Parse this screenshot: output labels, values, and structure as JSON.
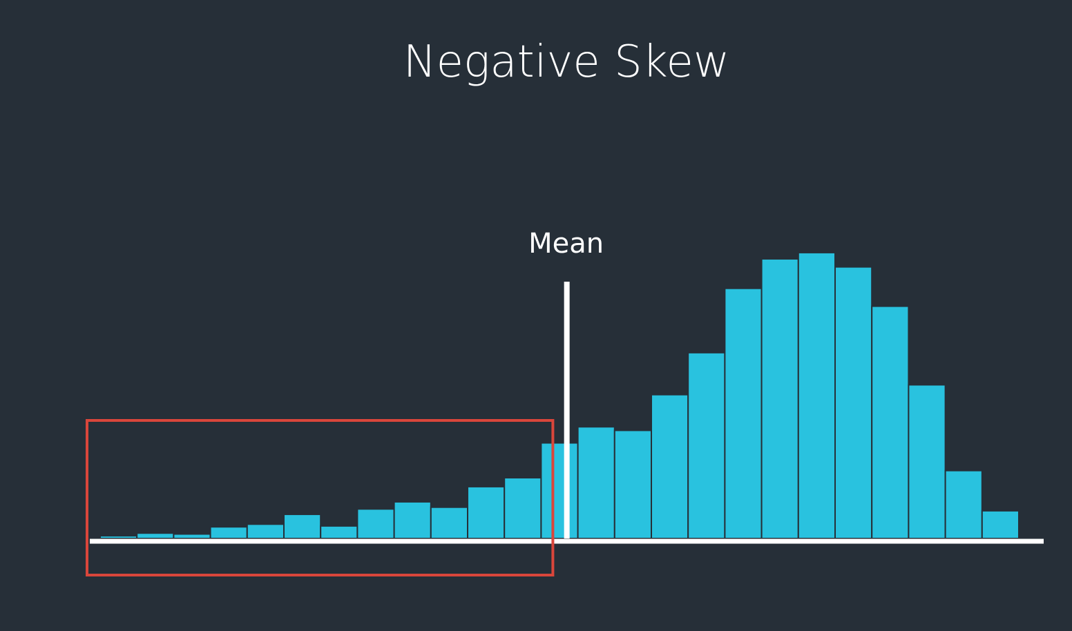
{
  "chart_data": {
    "type": "histogram",
    "title": "Negative Skew",
    "bin_count": 25,
    "values": [
      3,
      6,
      5,
      13,
      16,
      27,
      14,
      33,
      41,
      35,
      58,
      68,
      107,
      125,
      121,
      161,
      208,
      280,
      313,
      320,
      304,
      260,
      172,
      76,
      31
    ],
    "ylim": [
      0,
      330
    ],
    "bar_color": "#29c2df",
    "bar_edge_color": "#262f38",
    "axis_color": "#ffffff",
    "mean": {
      "label": "Mean",
      "bin_position": 12.7,
      "line_color": "#ffffff"
    },
    "highlight": {
      "covers_bins": [
        0,
        11
      ],
      "color": "#d9463b",
      "meaning": "left tail"
    }
  },
  "colors": {
    "background": "#262f38",
    "text": "#ffffff"
  }
}
